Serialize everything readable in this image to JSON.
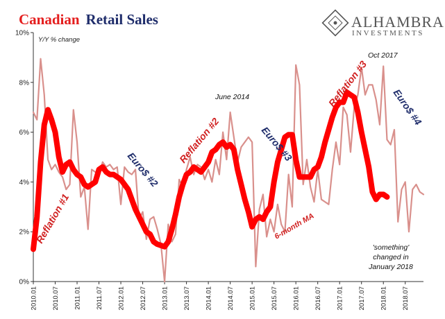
{
  "title": {
    "part1": "Canadian",
    "part2": "Retail Sales"
  },
  "logo": {
    "name": "ALHAMBRA",
    "sub": "INVESTMENTS"
  },
  "colors": {
    "raw": "#d9908c",
    "ma": "#ff0000",
    "title_red": "#e41e1e",
    "navy": "#1f2d6b"
  },
  "chart_data": {
    "type": "line",
    "ylabel": "Y/Y % change",
    "ylim": [
      0,
      10
    ],
    "y_ticks": [
      "0%",
      "2%",
      "4%",
      "6%",
      "8%",
      "10%"
    ],
    "x_ticks": [
      "2010.01",
      "2010.07",
      "2011.01",
      "2011.07",
      "2012.01",
      "2012.07",
      "2013.01",
      "2013.07",
      "2014.01",
      "2014.07",
      "2015.01",
      "2015.07",
      "2016.01",
      "2016.07",
      "2017.01",
      "2017.07",
      "2018.01",
      "2018.07"
    ],
    "x_start": "2010.01",
    "series": [
      {
        "name": "",
        "style": "thin",
        "values": [
          6.8,
          6.5,
          8.95,
          7.5,
          4.9,
          4.5,
          4.7,
          4.4,
          4.2,
          3.7,
          3.9,
          6.9,
          5.6,
          3.4,
          3.8,
          2.1,
          4.5,
          4.4,
          4.2,
          4.8,
          4.6,
          4.7,
          4.5,
          4.6,
          3.1,
          4.6,
          4.4,
          4.3,
          4.5,
          2.5,
          2.8,
          1.7,
          2.5,
          2.6,
          2.1,
          1.5,
          0.0,
          2.3,
          1.6,
          1.9,
          4.1,
          3.8,
          4.5,
          5.0,
          4.3,
          4.7,
          4.6,
          4.1,
          4.5,
          4.0,
          4.9,
          4.3,
          6.0,
          4.9,
          6.8,
          5.8,
          4.8,
          5.4,
          5.6,
          5.8,
          5.6,
          0.6,
          2.9,
          3.5,
          1.8,
          2.5,
          2.0,
          3.1,
          2.3,
          2.0,
          4.3,
          3.0,
          8.7,
          7.9,
          3.9,
          4.9,
          3.8,
          3.2,
          4.5,
          3.3,
          3.2,
          3.1,
          4.5,
          5.6,
          4.7,
          7.0,
          6.7,
          5.2,
          7.0,
          7.5,
          8.6,
          7.5,
          7.9,
          7.9,
          7.3,
          6.3,
          8.65,
          5.7,
          5.5,
          6.1,
          2.4,
          3.7,
          4.0,
          2.0,
          3.7,
          3.9,
          3.6,
          3.5
        ]
      },
      {
        "name": "6-month MA",
        "style": "thick",
        "values": [
          1.3,
          2.6,
          4.8,
          6.3,
          6.9,
          6.5,
          6.0,
          5.0,
          4.4,
          4.7,
          4.8,
          4.5,
          4.3,
          4.2,
          3.9,
          3.8,
          3.9,
          4.0,
          4.5,
          4.6,
          4.4,
          4.3,
          4.3,
          4.2,
          4.1,
          3.9,
          3.7,
          3.3,
          2.9,
          2.6,
          2.3,
          2.0,
          1.9,
          1.6,
          1.5,
          1.45,
          1.4,
          1.6,
          2.1,
          2.7,
          3.4,
          3.9,
          4.3,
          4.4,
          4.6,
          4.5,
          4.4,
          4.6,
          4.8,
          5.2,
          5.3,
          5.5,
          5.6,
          5.4,
          5.5,
          5.3,
          4.5,
          3.9,
          3.3,
          2.8,
          2.2,
          2.5,
          2.6,
          2.5,
          2.8,
          3.0,
          4.0,
          4.8,
          5.3,
          5.8,
          5.9,
          5.9,
          4.9,
          4.2,
          4.2,
          4.2,
          4.2,
          4.5,
          4.6,
          5.0,
          5.6,
          6.1,
          6.6,
          7.0,
          7.2,
          7.2,
          7.6,
          7.5,
          7.4,
          6.8,
          6.0,
          5.3,
          4.6,
          3.6,
          3.3,
          3.5,
          3.5,
          3.4
        ]
      }
    ],
    "annotations": [
      {
        "text": "Reflation #1",
        "color": "red"
      },
      {
        "text": "Euro$ #2",
        "color": "navy"
      },
      {
        "text": "Reflation #2",
        "color": "red"
      },
      {
        "text": "June 2014",
        "color": "black"
      },
      {
        "text": "Euro$ #3",
        "color": "navy"
      },
      {
        "text": "6-month MA",
        "color": "red"
      },
      {
        "text": "Reflation #3",
        "color": "red"
      },
      {
        "text": "Oct 2017",
        "color": "black"
      },
      {
        "text": "Euro$ #4",
        "color": "navy"
      },
      {
        "text": "'something'",
        "color": "black"
      },
      {
        "text": "changed in",
        "color": "black"
      },
      {
        "text": "January 2018",
        "color": "black"
      }
    ]
  }
}
